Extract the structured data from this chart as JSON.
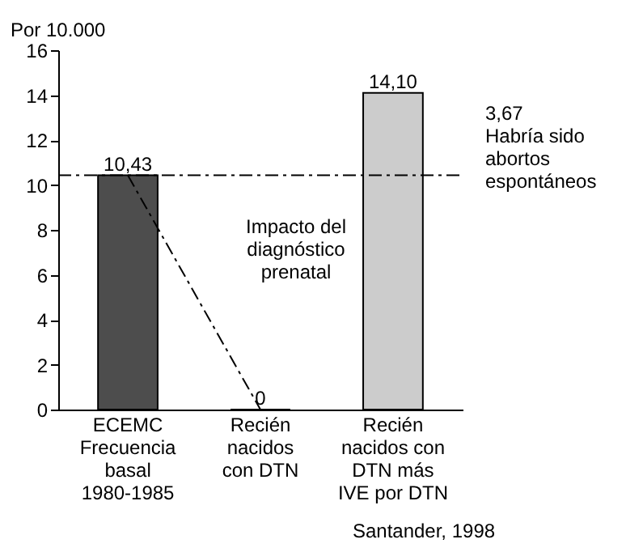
{
  "chart_data": {
    "type": "bar",
    "ylabel": "Por 10.000",
    "categories": [
      "ECEMC\nFrecuencia\nbasal\n1980-1985",
      "Recién\nnacidos\ncon DTN",
      "Recién\nnacidos con\nDTN más\nIVE por DTN"
    ],
    "values": [
      10.43,
      0,
      14.1
    ],
    "colors": [
      "#4d4d4d",
      "#000000",
      "#cccccc"
    ],
    "value_labels": [
      "10,43",
      "0",
      "14,10"
    ],
    "ylim": [
      0,
      16
    ],
    "yticks": [
      0,
      2,
      4,
      6,
      8,
      10,
      12,
      14,
      16
    ],
    "grid": false,
    "ref_lines": [
      {
        "axis": "y",
        "value": 10.43,
        "line_style": "dashed",
        "color": "#000000"
      }
    ],
    "annotations": [
      "3,67\nHabría sido\nabortos\nespontáneos",
      "Impacto del\ndiagnóstico\nprenatal",
      "Santander, 1998"
    ]
  }
}
